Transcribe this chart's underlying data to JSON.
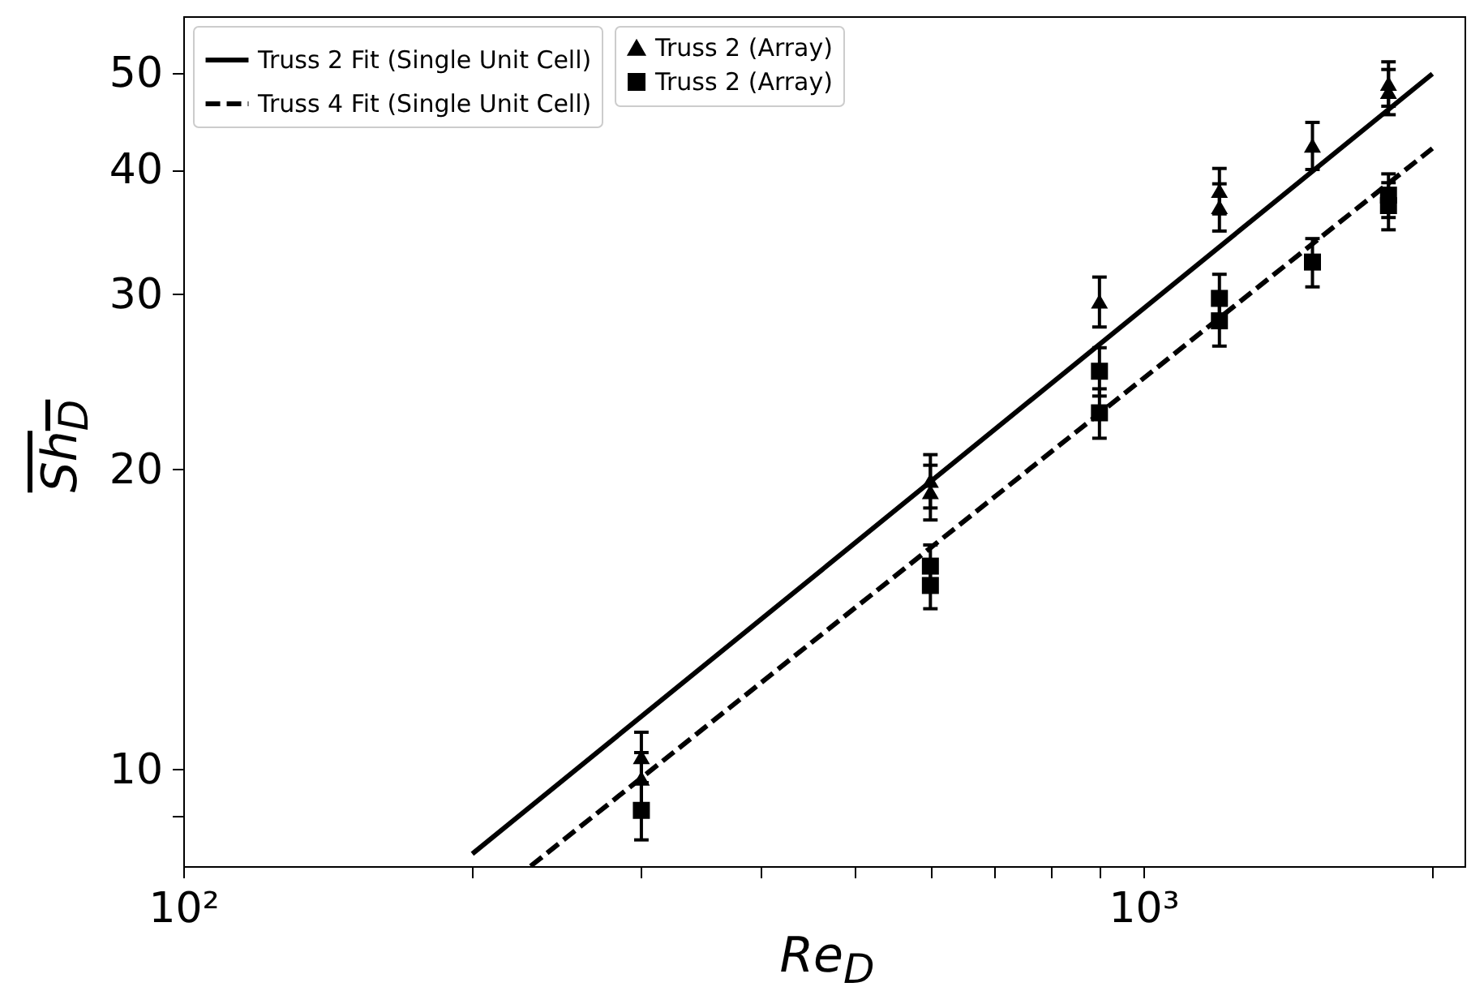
{
  "chart_data": {
    "type": "scatter",
    "xlabel": "Re$_{D}$",
    "ylabel": "Sh$_{D}$",
    "log": "xy",
    "grid": false,
    "legend": "top left",
    "xlim": [
      100,
      2160
    ],
    "ylim": [
      8,
      57
    ],
    "xticks": [
      {
        "value": 100,
        "label": "10²"
      },
      {
        "value": 200,
        "label": null
      },
      {
        "value": 300,
        "label": null
      },
      {
        "value": 400,
        "label": null
      },
      {
        "value": 500,
        "label": null
      },
      {
        "value": 600,
        "label": null
      },
      {
        "value": 700,
        "label": null
      },
      {
        "value": 800,
        "label": null
      },
      {
        "value": 900,
        "label": null
      },
      {
        "value": 1000,
        "label": "10³"
      },
      {
        "value": 2000,
        "label": null
      }
    ],
    "yticks": [
      10,
      20,
      30,
      40,
      50,
      {
        "value": 9,
        "label": null
      }
    ],
    "series": [
      {
        "name": "Truss 2 Fit (Single Unit Cell)",
        "type": "line",
        "line_style": "solid",
        "marker": "none",
        "color": "#000000",
        "x": [
          200,
          2000
        ],
        "values": [
          8.23,
          49.9
        ]
      },
      {
        "name": "Truss 4 Fit (Single Unit Cell)",
        "type": "line",
        "line_style": "dashed",
        "marker": "none",
        "color": "#000000",
        "x": [
          230,
          2000
        ],
        "values": [
          8.0,
          42.0
        ]
      },
      {
        "name": "Truss 2 (Array)",
        "type": "scatter",
        "marker": "triangle",
        "color": "#000000",
        "x": [
          300,
          300,
          600,
          600,
          900,
          1200,
          1200,
          1500,
          1800,
          1800
        ],
        "values": [
          10.3,
          9.8,
          19.5,
          19.0,
          29.5,
          38.1,
          36.7,
          42.3,
          48.8,
          47.9
        ],
        "errors": [
          0.6,
          0.6,
          1.2,
          1.2,
          1.7,
          2.0,
          2.0,
          2.3,
          2.5,
          2.5
        ]
      },
      {
        "name": "Truss 2 (Array)",
        "type": "scatter",
        "marker": "square",
        "color": "#000000",
        "x": [
          300,
          600,
          600,
          900,
          900,
          1200,
          1200,
          1500,
          1800,
          1800
        ],
        "values": [
          9.1,
          16.0,
          15.3,
          25.1,
          22.8,
          29.7,
          28.2,
          32.3,
          37.7,
          36.8
        ],
        "errors": [
          0.6,
          0.8,
          0.8,
          1.4,
          1.3,
          1.7,
          1.6,
          1.8,
          1.9,
          2.0
        ]
      }
    ]
  }
}
